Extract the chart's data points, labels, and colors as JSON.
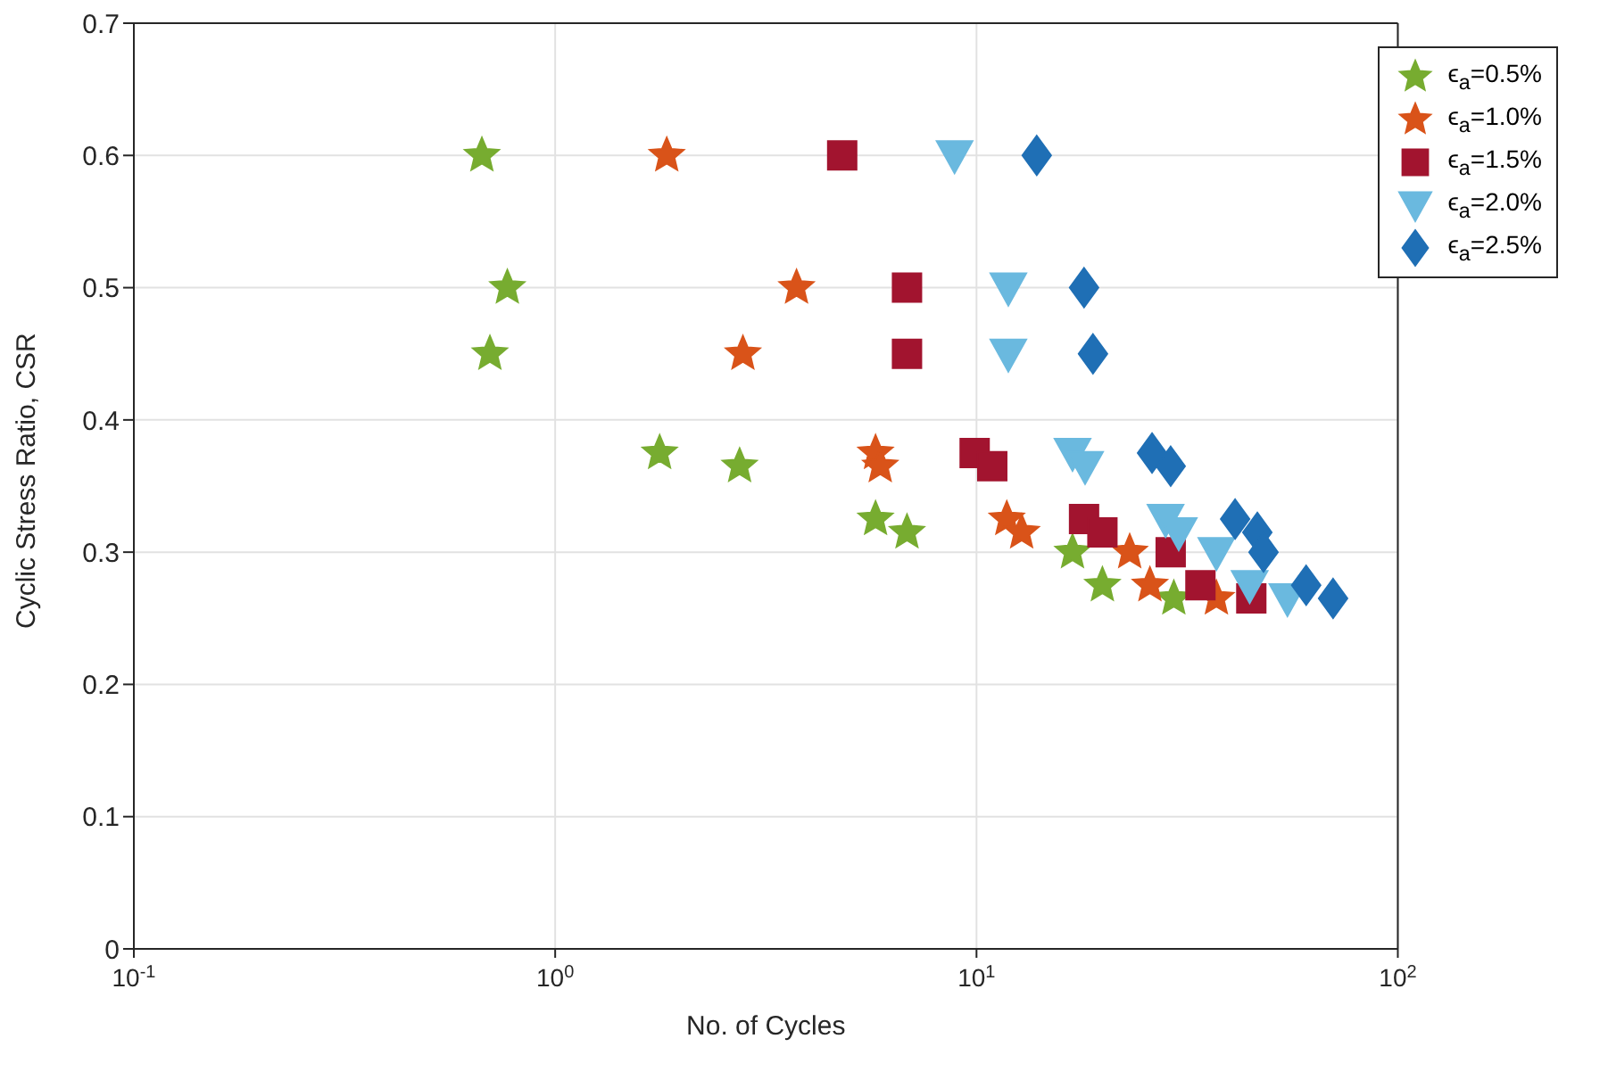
{
  "chart_data": {
    "type": "scatter",
    "xlabel": "No. of Cycles",
    "ylabel": "Cyclic Stress Ratio, CSR",
    "log": "x",
    "grid": true,
    "legend": "top right",
    "xlim": [
      0.1,
      100
    ],
    "xticks": [
      {
        "value": 0.1,
        "label": "10$^{-1}$"
      },
      {
        "value": 1,
        "label": "10$^{0}$"
      },
      {
        "value": 10,
        "label": "10$^{1}$"
      },
      {
        "value": 100,
        "label": "10$^{2}$"
      }
    ],
    "ylim": [
      0,
      0.7
    ],
    "yticks": [
      0,
      0.1,
      0.2,
      0.3,
      0.4,
      0.5,
      0.6,
      0.7
    ],
    "series": [
      {
        "name": "ϵ$_{a}$=0.5%",
        "color": "#77ac30",
        "marker": "star",
        "x": [
          0.67,
          0.77,
          0.7,
          1.77,
          2.74,
          5.76,
          6.84,
          16.9,
          19.9,
          29.4
        ],
        "values": [
          0.6,
          0.5,
          0.45,
          0.375,
          0.365,
          0.325,
          0.315,
          0.3,
          0.275,
          0.265
        ]
      },
      {
        "name": "ϵ$_{a}$=1.0%",
        "color": "#d95319",
        "marker": "star",
        "x": [
          1.84,
          3.74,
          2.79,
          5.76,
          5.91,
          11.8,
          12.8,
          23.1,
          25.8,
          37.1
        ],
        "values": [
          0.6,
          0.5,
          0.45,
          0.375,
          0.365,
          0.325,
          0.315,
          0.3,
          0.275,
          0.265
        ]
      },
      {
        "name": "ϵ$_{a}$=1.5%",
        "color": "#a2142f",
        "marker": "square",
        "x": [
          4.8,
          6.84,
          6.84,
          9.9,
          10.9,
          18.0,
          19.9,
          28.9,
          34.0,
          44.9
        ],
        "values": [
          0.6,
          0.5,
          0.45,
          0.375,
          0.365,
          0.325,
          0.315,
          0.3,
          0.275,
          0.265
        ]
      },
      {
        "name": "ϵ$_{a}$=2.0%",
        "color": "#6ab9df",
        "marker": "triangle",
        "x": [
          8.87,
          11.9,
          11.9,
          16.9,
          18.1,
          28.1,
          30.2,
          37.1,
          44.5,
          54.7
        ],
        "values": [
          0.6,
          0.5,
          0.45,
          0.375,
          0.365,
          0.325,
          0.315,
          0.3,
          0.275,
          0.265
        ]
      },
      {
        "name": "ϵ$_{a}$=2.5%",
        "color": "#1f6fb5",
        "marker": "diamond",
        "x": [
          13.9,
          18.0,
          18.9,
          26.1,
          28.9,
          41.1,
          46.4,
          48.0,
          60.6,
          70.2
        ],
        "values": [
          0.6,
          0.5,
          0.45,
          0.375,
          0.365,
          0.325,
          0.315,
          0.3,
          0.275,
          0.265
        ]
      }
    ]
  }
}
